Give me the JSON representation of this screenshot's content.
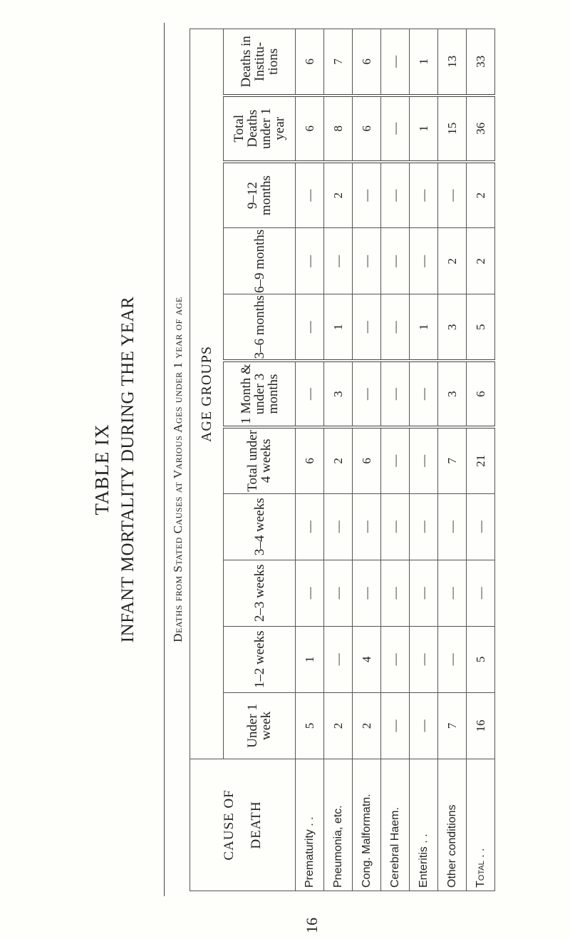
{
  "table_number": "TABLE IX",
  "title": "INFANT MORTALITY DURING THE YEAR",
  "subtitle": "Deaths from Stated Causes at Various Ages under 1 year of age",
  "cause_header": [
    "CAUSE OF",
    "DEATH"
  ],
  "age_groups_label": "AGE GROUPS",
  "columns": [
    "Under 1 week",
    "1–2 weeks",
    "2–3 weeks",
    "3–4 weeks",
    "Total under 4 weeks",
    "1 Month & under 3 months",
    "3–6 months",
    "6–9 months",
    "9–12 months",
    "Total Deaths under 1 year",
    "Deaths in Institu- tions"
  ],
  "rows": [
    {
      "cause": "Prematurity  . .",
      "values": [
        "5",
        "1",
        "—",
        "—",
        "6",
        "—",
        "—",
        "—",
        "—",
        "6",
        "6"
      ]
    },
    {
      "cause": "Pneumonia, etc.",
      "values": [
        "2",
        "—",
        "—",
        "—",
        "2",
        "3",
        "1",
        "—",
        "2",
        "8",
        "7"
      ]
    },
    {
      "cause": "Cong. Malformatn.",
      "values": [
        "2",
        "4",
        "—",
        "—",
        "6",
        "—",
        "—",
        "—",
        "—",
        "6",
        "6"
      ]
    },
    {
      "cause": "Cerebral Haem.",
      "values": [
        "—",
        "—",
        "—",
        "—",
        "—",
        "—",
        "—",
        "—",
        "—",
        "—",
        "—"
      ]
    },
    {
      "cause": "Enteritis  . .",
      "values": [
        "—",
        "—",
        "—",
        "—",
        "—",
        "—",
        "1",
        "—",
        "—",
        "1",
        "1"
      ]
    },
    {
      "cause": "Other conditions",
      "values": [
        "7",
        "—",
        "—",
        "—",
        "7",
        "3",
        "3",
        "2",
        "—",
        "15",
        "13"
      ]
    },
    {
      "cause": "Total  . .",
      "values": [
        "16",
        "5",
        "—",
        "—",
        "21",
        "6",
        "5",
        "2",
        "2",
        "36",
        "33"
      ]
    }
  ],
  "page_number": "16"
}
